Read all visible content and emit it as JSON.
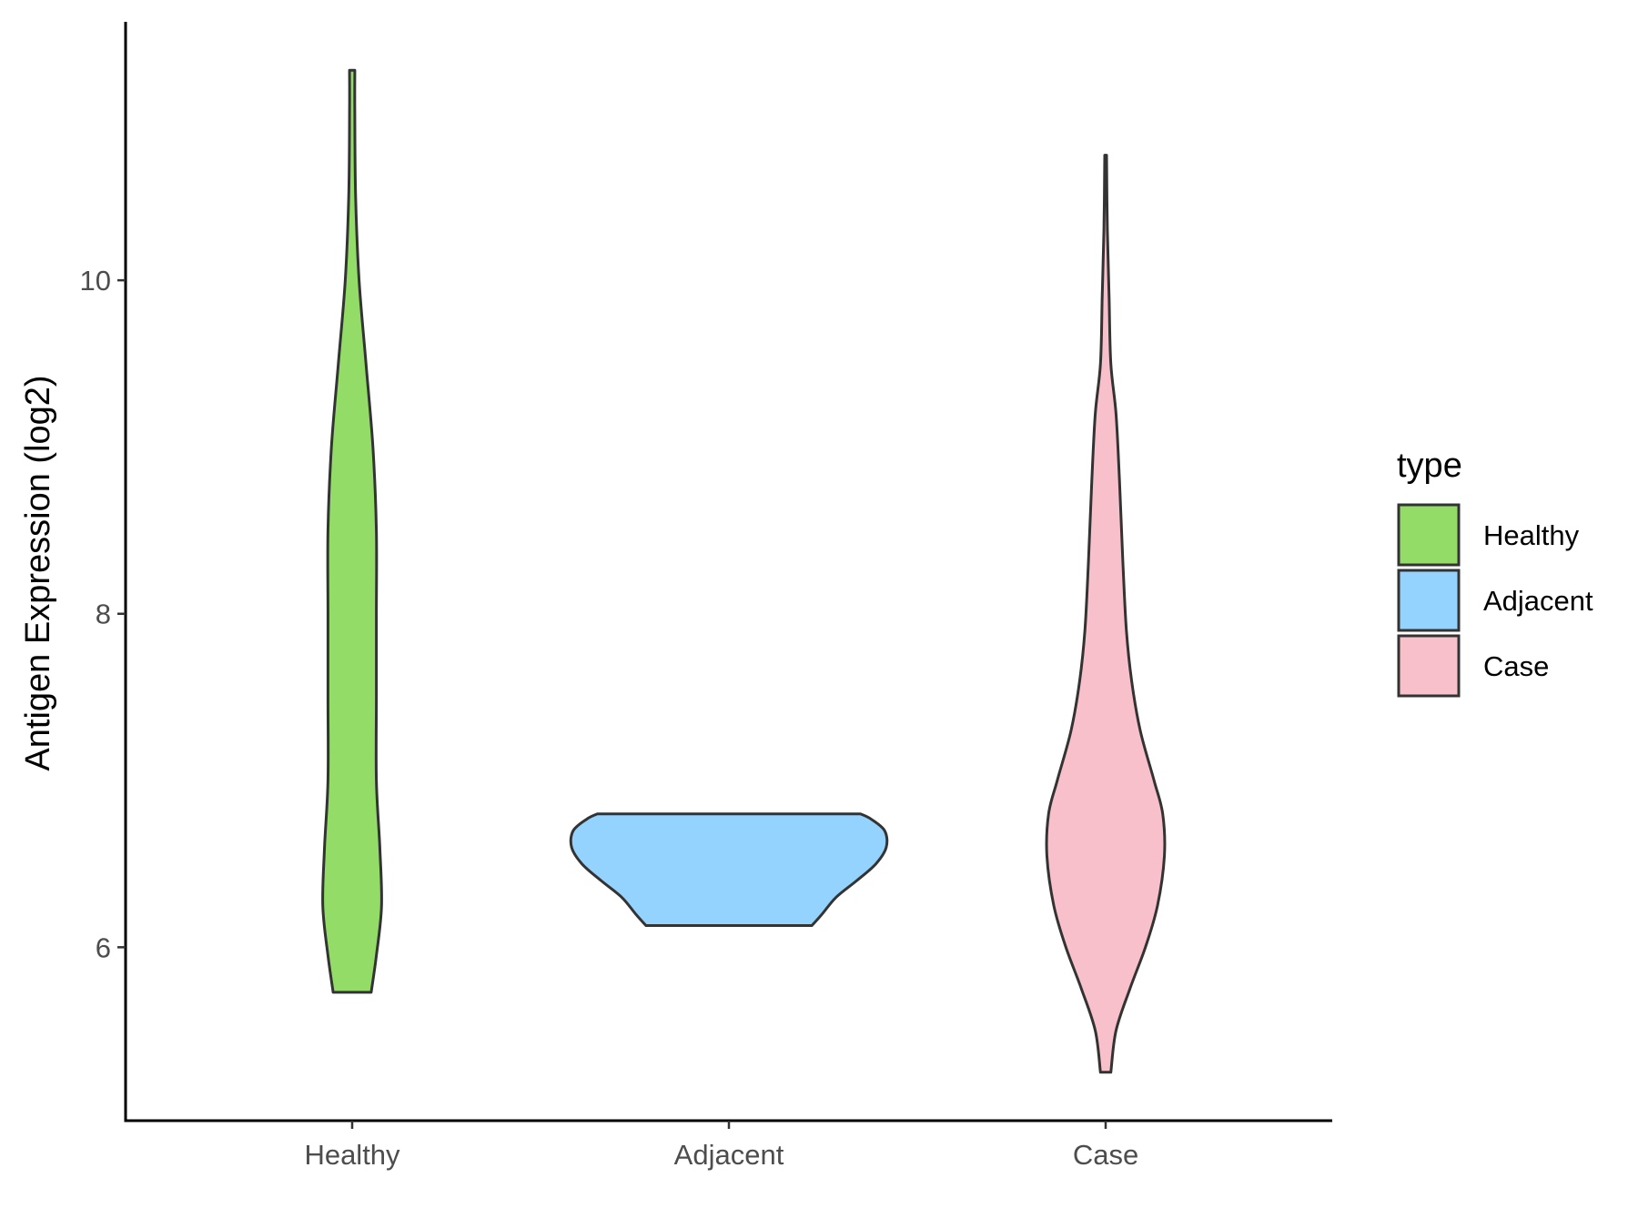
{
  "chart_data": {
    "type": "violin",
    "xlabel": "",
    "ylabel": "Antigen Expression (log2)",
    "categories": [
      "Healthy",
      "Adjacent",
      "Case"
    ],
    "ylim": [
      4.96,
      11.55
    ],
    "yticks": [
      6,
      8,
      10
    ],
    "grid": false,
    "legend": {
      "title": "type",
      "position": "right",
      "entries": [
        {
          "label": "Healthy",
          "color": "#92DC67"
        },
        {
          "label": "Adjacent",
          "color": "#94D3FD"
        },
        {
          "label": "Case",
          "color": "#F8C0CA"
        }
      ]
    },
    "series": [
      {
        "name": "Healthy",
        "color": "#92DC67",
        "min": 5.73,
        "max": 11.26,
        "density": [
          [
            5.73,
            0.11
          ],
          [
            5.95,
            0.14
          ],
          [
            6.25,
            0.17
          ],
          [
            6.6,
            0.16
          ],
          [
            7.0,
            0.14
          ],
          [
            7.5,
            0.14
          ],
          [
            8.0,
            0.14
          ],
          [
            8.5,
            0.14
          ],
          [
            9.0,
            0.12
          ],
          [
            9.5,
            0.08
          ],
          [
            10.0,
            0.04
          ],
          [
            10.5,
            0.02
          ],
          [
            11.0,
            0.015
          ],
          [
            11.26,
            0.015
          ]
        ]
      },
      {
        "name": "Adjacent",
        "color": "#94D3FD",
        "min": 6.13,
        "max": 6.8,
        "density": [
          [
            6.13,
            0.48
          ],
          [
            6.2,
            0.54
          ],
          [
            6.3,
            0.62
          ],
          [
            6.4,
            0.74
          ],
          [
            6.5,
            0.85
          ],
          [
            6.6,
            0.91
          ],
          [
            6.7,
            0.9
          ],
          [
            6.77,
            0.82
          ],
          [
            6.8,
            0.76
          ]
        ]
      },
      {
        "name": "Case",
        "color": "#F8C0CA",
        "min": 5.25,
        "max": 10.75,
        "density": [
          [
            5.25,
            0.03
          ],
          [
            5.5,
            0.06
          ],
          [
            5.75,
            0.14
          ],
          [
            6.0,
            0.23
          ],
          [
            6.25,
            0.3
          ],
          [
            6.55,
            0.34
          ],
          [
            6.8,
            0.33
          ],
          [
            7.0,
            0.28
          ],
          [
            7.3,
            0.2
          ],
          [
            7.6,
            0.15
          ],
          [
            7.9,
            0.12
          ],
          [
            8.3,
            0.1
          ],
          [
            8.8,
            0.08
          ],
          [
            9.2,
            0.06
          ],
          [
            9.5,
            0.03
          ],
          [
            9.9,
            0.02
          ],
          [
            10.3,
            0.01
          ],
          [
            10.75,
            0.005
          ]
        ]
      }
    ]
  }
}
